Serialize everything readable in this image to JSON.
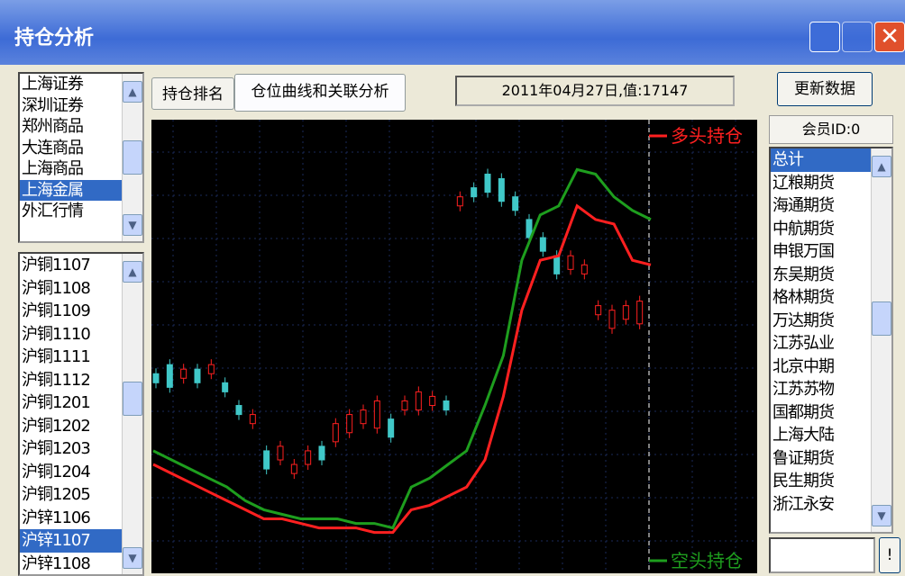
{
  "window": {
    "title": "持仓分析"
  },
  "markets": {
    "items": [
      "上海证券",
      "深圳证券",
      "郑州商品",
      "大连商品",
      "上海商品",
      "上海金属",
      "外汇行情"
    ],
    "selected": 5
  },
  "contracts": {
    "items": [
      "沪铜1107",
      "沪铜1108",
      "沪铜1109",
      "沪铜1110",
      "沪铜1111",
      "沪铜1112",
      "沪铜1201",
      "沪铜1202",
      "沪铜1203",
      "沪铜1204",
      "沪铜1205",
      "沪锌1106",
      "沪锌1107",
      "沪锌1108"
    ],
    "selected": 12
  },
  "tabs": [
    "持仓排名",
    "仓位曲线和关联分析"
  ],
  "status": "2011年04月27日,值:17147",
  "update_button": "更新数据",
  "members": {
    "header": "会员ID:0",
    "items": [
      "总计",
      "辽粮期货",
      "海通期货",
      "中航期货",
      "申银万国",
      "东吴期货",
      "格林期货",
      "万达期货",
      "江苏弘业",
      "北京中期",
      "江苏苏物",
      "国都期货",
      "上海大陆",
      "鲁证期货",
      "民生期货",
      "浙江永安"
    ],
    "selected": 0
  },
  "go_button": "!",
  "chart": {
    "type": "line",
    "series": [
      {
        "name": "多头持仓",
        "color": "#ff2020",
        "values": [
          24,
          22,
          20,
          18,
          16,
          14,
          12,
          12,
          11,
          10,
          10,
          10,
          9,
          9,
          14,
          15,
          17,
          19,
          25,
          39,
          58,
          69,
          70,
          81,
          78,
          77,
          69,
          68
        ]
      },
      {
        "name": "空头持仓",
        "color": "#1e9e1e",
        "values": [
          27,
          25,
          23,
          21,
          19,
          16,
          14,
          13,
          12,
          12,
          12,
          11,
          11,
          10,
          19,
          21,
          24,
          27,
          37,
          48,
          69,
          79,
          81,
          89,
          88,
          83,
          80,
          78
        ]
      }
    ],
    "candles": [
      [
        44,
        42
      ],
      [
        46,
        41
      ],
      [
        43,
        45
      ],
      [
        45,
        42
      ],
      [
        44,
        46
      ],
      [
        42,
        40
      ],
      [
        37,
        35
      ],
      [
        33,
        35
      ],
      [
        27,
        23
      ],
      [
        25,
        28
      ],
      [
        22,
        24
      ],
      [
        24,
        27
      ],
      [
        28,
        25
      ],
      [
        29,
        33
      ],
      [
        31,
        35
      ],
      [
        33,
        36
      ],
      [
        32,
        38
      ],
      [
        34,
        30
      ],
      [
        36,
        38
      ],
      [
        36,
        40
      ],
      [
        37,
        39
      ],
      [
        38,
        36
      ],
      [
        81,
        83
      ],
      [
        85,
        83
      ],
      [
        88,
        84
      ],
      [
        87,
        82
      ],
      [
        83,
        80
      ],
      [
        78,
        74
      ],
      [
        74,
        71
      ],
      [
        70,
        66
      ],
      [
        67,
        70
      ],
      [
        66,
        68
      ],
      [
        57,
        59
      ],
      [
        54,
        58
      ],
      [
        56,
        59
      ],
      [
        55,
        60
      ]
    ],
    "up_color": "#ff2020",
    "down_color": "#40c8c8"
  }
}
